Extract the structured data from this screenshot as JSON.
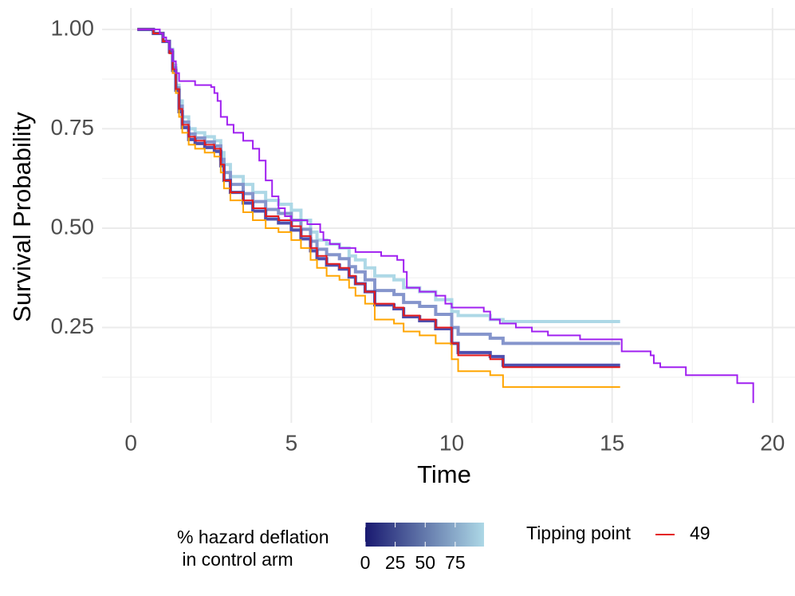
{
  "chart_data": {
    "type": "step",
    "x_label": "Time",
    "y_label": "Survival Probability",
    "xlim": [
      -0.9,
      20.9
    ],
    "ylim": [
      0.01,
      1.054
    ],
    "xticks": [
      0,
      5,
      10,
      15,
      20
    ],
    "yticks": [
      {
        "value": 0.25,
        "label": "0.25"
      },
      {
        "value": 0.5,
        "label": "0.50"
      },
      {
        "value": 0.75,
        "label": "0.75"
      },
      {
        "value": 1,
        "label": "1.00"
      }
    ],
    "grid": true,
    "minor_grid": true,
    "x": [
      0.2,
      0.7,
      1.0,
      1.2,
      1.3,
      1.4,
      1.5,
      1.6,
      1.8,
      2.0,
      2.3,
      2.6,
      2.8,
      2.9,
      3.1,
      3.5,
      3.8,
      4.2,
      4.6,
      5.0,
      5.3,
      5.6,
      5.8,
      6.1,
      6.5,
      6.8,
      7.0,
      7.3,
      7.6,
      8.2,
      8.5,
      9.0,
      9.5,
      10.0,
      10.2,
      11.2,
      11.6,
      15.25
    ],
    "series": [
      {
        "color": "#add8e6",
        "level": 90,
        "values": [
          1.0,
          0.99,
          0.97,
          0.95,
          0.91,
          0.86,
          0.82,
          0.78,
          0.75,
          0.74,
          0.73,
          0.72,
          0.69,
          0.66,
          0.63,
          0.61,
          0.59,
          0.57,
          0.56,
          0.545,
          0.52,
          0.49,
          0.47,
          0.46,
          0.45,
          0.43,
          0.42,
          0.4,
          0.38,
          0.37,
          0.35,
          0.34,
          0.32,
          0.29,
          0.28,
          0.27,
          0.265,
          0.265
        ]
      },
      {
        "color": "#8595cc",
        "level": 60,
        "values": [
          1.0,
          0.99,
          0.97,
          0.947,
          0.903,
          0.853,
          0.807,
          0.767,
          0.737,
          0.727,
          0.717,
          0.707,
          0.673,
          0.64,
          0.61,
          0.587,
          0.567,
          0.547,
          0.537,
          0.52,
          0.497,
          0.467,
          0.447,
          0.433,
          0.423,
          0.403,
          0.39,
          0.37,
          0.343,
          0.333,
          0.313,
          0.303,
          0.283,
          0.25,
          0.233,
          0.223,
          0.21,
          0.21
        ]
      },
      {
        "color": "#4f4fae",
        "level": 30,
        "values": [
          1.0,
          0.99,
          0.97,
          0.943,
          0.897,
          0.847,
          0.793,
          0.753,
          0.723,
          0.713,
          0.703,
          0.693,
          0.657,
          0.62,
          0.59,
          0.563,
          0.543,
          0.523,
          0.513,
          0.495,
          0.473,
          0.443,
          0.423,
          0.407,
          0.397,
          0.377,
          0.36,
          0.34,
          0.307,
          0.297,
          0.277,
          0.267,
          0.247,
          0.21,
          0.187,
          0.177,
          0.155,
          0.155
        ]
      },
      {
        "color": "#ffa500",
        "values": [
          1.0,
          0.99,
          0.97,
          0.94,
          0.89,
          0.84,
          0.78,
          0.74,
          0.71,
          0.7,
          0.69,
          0.68,
          0.64,
          0.6,
          0.57,
          0.54,
          0.52,
          0.5,
          0.49,
          0.47,
          0.45,
          0.42,
          0.4,
          0.38,
          0.37,
          0.35,
          0.33,
          0.31,
          0.27,
          0.26,
          0.24,
          0.23,
          0.21,
          0.17,
          0.14,
          0.13,
          0.1,
          0.1
        ]
      },
      {
        "name": "49",
        "color": "#e41a1c",
        "values": [
          1.0,
          0.99,
          0.97,
          0.94,
          0.9,
          0.85,
          0.8,
          0.76,
          0.73,
          0.72,
          0.71,
          0.7,
          0.66,
          0.62,
          0.59,
          0.57,
          0.55,
          0.53,
          0.52,
          0.505,
          0.48,
          0.45,
          0.43,
          0.41,
          0.4,
          0.38,
          0.36,
          0.34,
          0.31,
          0.3,
          0.28,
          0.27,
          0.25,
          0.21,
          0.18,
          0.17,
          0.15,
          0.15
        ]
      },
      {
        "color": "#a020f0",
        "x": [
          0.2,
          0.8,
          0.9,
          1.0,
          1.1,
          1.2,
          1.3,
          1.4,
          1.5,
          2.0,
          2.5,
          2.6,
          2.7,
          2.8,
          3.0,
          3.2,
          3.5,
          3.8,
          4.0,
          4.2,
          4.4,
          4.6,
          4.8,
          5.0,
          5.5,
          5.9,
          6.0,
          6.2,
          6.5,
          7.0,
          7.8,
          8.3,
          8.5,
          8.6,
          9.0,
          9.5,
          9.8,
          10.0,
          11.0,
          11.2,
          11.5,
          12.0,
          12.5,
          13.0,
          14.0,
          15.3,
          16.2,
          16.3,
          16.5,
          17.3,
          18.9,
          19.4
        ],
        "values": [
          1.0,
          1.0,
          0.99,
          0.98,
          0.97,
          0.95,
          0.92,
          0.89,
          0.87,
          0.86,
          0.855,
          0.84,
          0.82,
          0.78,
          0.76,
          0.74,
          0.72,
          0.7,
          0.67,
          0.62,
          0.58,
          0.55,
          0.53,
          0.52,
          0.51,
          0.49,
          0.47,
          0.46,
          0.45,
          0.44,
          0.43,
          0.42,
          0.39,
          0.35,
          0.34,
          0.33,
          0.31,
          0.3,
          0.29,
          0.27,
          0.26,
          0.25,
          0.24,
          0.23,
          0.22,
          0.19,
          0.18,
          0.16,
          0.15,
          0.13,
          0.11,
          0.06
        ]
      }
    ],
    "legend_title": "Tipping point",
    "colorbar": {
      "title_lines": [
        "% hazard deflation",
        " in control arm"
      ],
      "low_color": "#191970",
      "high_color": "#add8e6",
      "lim": [
        0,
        99
      ],
      "ticks": [
        0,
        25,
        50,
        75
      ]
    }
  }
}
